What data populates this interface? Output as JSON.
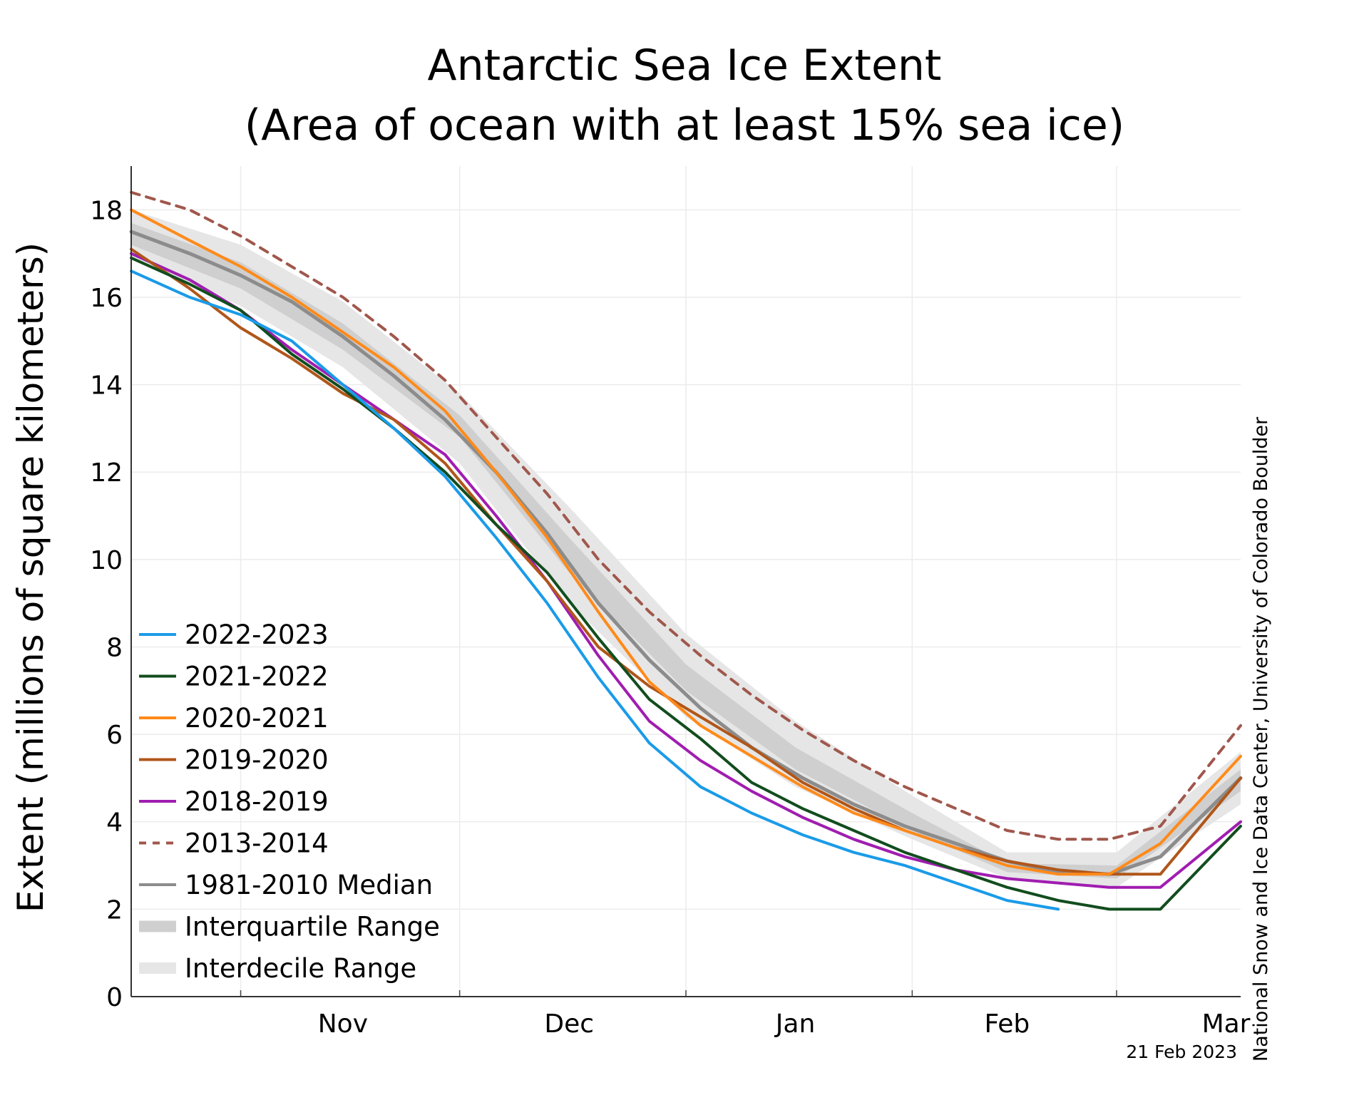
{
  "chart_data": {
    "type": "line",
    "title": "Antarctic Sea Ice Extent",
    "subtitle": "(Area of ocean with at least 15% sea ice)",
    "ylabel": "Extent (millions of square kilometers)",
    "xlabel": "",
    "xlim": [
      "2022-10-17",
      "2023-03-18"
    ],
    "ylim": [
      0,
      19
    ],
    "y_ticks": [
      0,
      2,
      4,
      6,
      8,
      10,
      12,
      14,
      16,
      18
    ],
    "x_tick_labels": [
      {
        "label": "Nov",
        "date": "2022-11-15"
      },
      {
        "label": "Dec",
        "date": "2022-12-16"
      },
      {
        "label": "Jan",
        "date": "2023-01-16"
      },
      {
        "label": "Feb",
        "date": "2023-02-14"
      },
      {
        "label": "Mar",
        "date": "2023-03-16"
      }
    ],
    "month_boundaries": [
      "2022-11-01",
      "2022-12-01",
      "2023-01-01",
      "2023-02-01",
      "2023-03-01"
    ],
    "grid": true,
    "legend_position": "bottom-left",
    "series": [
      {
        "name": "2022-2023",
        "color": "#1a9be8",
        "dash": false,
        "x": [
          "2022-10-17",
          "2022-10-25",
          "2022-11-01",
          "2022-11-08",
          "2022-11-15",
          "2022-11-22",
          "2022-11-29",
          "2022-12-06",
          "2022-12-13",
          "2022-12-20",
          "2022-12-27",
          "2023-01-03",
          "2023-01-10",
          "2023-01-17",
          "2023-01-24",
          "2023-01-31",
          "2023-02-07",
          "2023-02-14",
          "2023-02-21"
        ],
        "values": [
          16.6,
          16.0,
          15.6,
          15.0,
          14.0,
          13.0,
          11.9,
          10.5,
          9.0,
          7.3,
          5.8,
          4.8,
          4.2,
          3.7,
          3.3,
          3.0,
          2.6,
          2.2,
          2.0
        ]
      },
      {
        "name": "2021-2022",
        "color": "#124d1e",
        "dash": false,
        "x": [
          "2022-10-17",
          "2022-10-25",
          "2022-11-01",
          "2022-11-08",
          "2022-11-15",
          "2022-11-22",
          "2022-11-29",
          "2022-12-06",
          "2022-12-13",
          "2022-12-20",
          "2022-12-27",
          "2023-01-03",
          "2023-01-10",
          "2023-01-17",
          "2023-01-24",
          "2023-01-31",
          "2023-02-07",
          "2023-02-14",
          "2023-02-21",
          "2023-02-28",
          "2023-03-07",
          "2023-03-18"
        ],
        "values": [
          16.9,
          16.3,
          15.7,
          14.7,
          13.9,
          13.0,
          12.0,
          10.8,
          9.7,
          8.2,
          6.8,
          5.9,
          4.9,
          4.3,
          3.8,
          3.3,
          2.9,
          2.5,
          2.2,
          2.0,
          2.0,
          3.9
        ]
      },
      {
        "name": "2020-2021",
        "color": "#ff8a1a",
        "dash": false,
        "x": [
          "2022-10-17",
          "2022-10-25",
          "2022-11-01",
          "2022-11-08",
          "2022-11-15",
          "2022-11-22",
          "2022-11-29",
          "2022-12-06",
          "2022-12-13",
          "2022-12-20",
          "2022-12-27",
          "2023-01-03",
          "2023-01-10",
          "2023-01-17",
          "2023-01-24",
          "2023-01-31",
          "2023-02-07",
          "2023-02-14",
          "2023-02-21",
          "2023-02-28",
          "2023-03-07",
          "2023-03-18"
        ],
        "values": [
          18.0,
          17.3,
          16.7,
          16.0,
          15.2,
          14.4,
          13.4,
          12.0,
          10.5,
          8.8,
          7.2,
          6.2,
          5.5,
          4.8,
          4.2,
          3.8,
          3.4,
          3.0,
          2.8,
          2.8,
          3.5,
          5.5
        ]
      },
      {
        "name": "2019-2020",
        "color": "#b0561a",
        "dash": false,
        "x": [
          "2022-10-17",
          "2022-10-25",
          "2022-11-01",
          "2022-11-08",
          "2022-11-15",
          "2022-11-22",
          "2022-11-29",
          "2022-12-06",
          "2022-12-13",
          "2022-12-20",
          "2022-12-27",
          "2023-01-03",
          "2023-01-10",
          "2023-01-17",
          "2023-01-24",
          "2023-01-31",
          "2023-02-07",
          "2023-02-14",
          "2023-02-21",
          "2023-02-28",
          "2023-03-07",
          "2023-03-18"
        ],
        "values": [
          17.1,
          16.2,
          15.3,
          14.6,
          13.8,
          13.2,
          12.2,
          10.8,
          9.5,
          8.0,
          7.1,
          6.4,
          5.7,
          4.9,
          4.3,
          3.8,
          3.4,
          3.1,
          2.9,
          2.8,
          2.8,
          5.0
        ]
      },
      {
        "name": "2018-2019",
        "color": "#a01db0",
        "dash": false,
        "x": [
          "2022-10-17",
          "2022-10-25",
          "2022-11-01",
          "2022-11-08",
          "2022-11-15",
          "2022-11-22",
          "2022-11-29",
          "2022-12-06",
          "2022-12-13",
          "2022-12-20",
          "2022-12-27",
          "2023-01-03",
          "2023-01-10",
          "2023-01-17",
          "2023-01-24",
          "2023-01-31",
          "2023-02-07",
          "2023-02-14",
          "2023-02-21",
          "2023-02-28",
          "2023-03-07",
          "2023-03-18"
        ],
        "values": [
          17.0,
          16.4,
          15.7,
          14.8,
          14.0,
          13.2,
          12.4,
          11.0,
          9.5,
          7.8,
          6.3,
          5.4,
          4.7,
          4.1,
          3.6,
          3.2,
          2.9,
          2.7,
          2.6,
          2.5,
          2.5,
          4.0
        ]
      },
      {
        "name": "2013-2014",
        "color": "#a0574c",
        "dash": true,
        "x": [
          "2022-10-17",
          "2022-10-25",
          "2022-11-01",
          "2022-11-08",
          "2022-11-15",
          "2022-11-22",
          "2022-11-29",
          "2022-12-06",
          "2022-12-13",
          "2022-12-20",
          "2022-12-27",
          "2023-01-03",
          "2023-01-10",
          "2023-01-17",
          "2023-01-24",
          "2023-01-31",
          "2023-02-07",
          "2023-02-14",
          "2023-02-21",
          "2023-02-28",
          "2023-03-07",
          "2023-03-18"
        ],
        "values": [
          18.4,
          18.0,
          17.4,
          16.7,
          16.0,
          15.1,
          14.1,
          12.8,
          11.5,
          10.0,
          8.8,
          7.8,
          6.9,
          6.1,
          5.4,
          4.8,
          4.3,
          3.8,
          3.6,
          3.6,
          3.9,
          6.2
        ]
      },
      {
        "name": "1981-2010 Median",
        "color": "#8c8c8c",
        "dash": false,
        "x": [
          "2022-10-17",
          "2022-10-25",
          "2022-11-01",
          "2022-11-08",
          "2022-11-15",
          "2022-11-22",
          "2022-11-29",
          "2022-12-06",
          "2022-12-13",
          "2022-12-20",
          "2022-12-27",
          "2023-01-03",
          "2023-01-10",
          "2023-01-17",
          "2023-01-24",
          "2023-01-31",
          "2023-02-07",
          "2023-02-14",
          "2023-02-21",
          "2023-02-28",
          "2023-03-07",
          "2023-03-18"
        ],
        "values": [
          17.5,
          17.0,
          16.5,
          15.9,
          15.1,
          14.2,
          13.2,
          12.0,
          10.6,
          9.0,
          7.7,
          6.6,
          5.7,
          5.0,
          4.4,
          3.9,
          3.5,
          3.1,
          2.85,
          2.8,
          3.2,
          5.0
        ]
      }
    ],
    "ranges": [
      {
        "name": "Interdecile Range",
        "color": "#e6e6e6",
        "x": [
          "2022-10-17",
          "2022-11-01",
          "2022-11-15",
          "2022-12-01",
          "2022-12-16",
          "2023-01-01",
          "2023-01-16",
          "2023-02-01",
          "2023-02-14",
          "2023-03-01",
          "2023-03-18"
        ],
        "low": [
          16.9,
          15.8,
          14.4,
          12.2,
          9.0,
          6.4,
          4.8,
          3.6,
          2.7,
          2.5,
          4.4
        ],
        "high": [
          18.0,
          17.2,
          15.9,
          13.8,
          11.2,
          8.3,
          6.3,
          4.6,
          3.3,
          3.3,
          5.6
        ]
      },
      {
        "name": "Interquartile Range",
        "color": "#cfcfcf",
        "x": [
          "2022-10-17",
          "2022-11-01",
          "2022-11-15",
          "2022-12-01",
          "2022-12-16",
          "2023-01-01",
          "2023-01-16",
          "2023-02-01",
          "2023-02-14",
          "2023-03-01",
          "2023-03-18"
        ],
        "low": [
          17.2,
          16.2,
          14.8,
          12.8,
          9.7,
          7.0,
          5.2,
          3.8,
          2.85,
          2.7,
          4.7
        ],
        "high": [
          17.7,
          16.8,
          15.4,
          13.3,
          10.5,
          7.6,
          5.7,
          4.2,
          3.05,
          3.0,
          5.2
        ]
      }
    ],
    "legend": [
      {
        "label": "2022-2023",
        "kind": "line",
        "color": "#1a9be8",
        "dash": false
      },
      {
        "label": "2021-2022",
        "kind": "line",
        "color": "#124d1e",
        "dash": false
      },
      {
        "label": "2020-2021",
        "kind": "line",
        "color": "#ff8a1a",
        "dash": false
      },
      {
        "label": "2019-2020",
        "kind": "line",
        "color": "#b0561a",
        "dash": false
      },
      {
        "label": "2018-2019",
        "kind": "line",
        "color": "#a01db0",
        "dash": false
      },
      {
        "label": "2013-2014",
        "kind": "line",
        "color": "#a0574c",
        "dash": true
      },
      {
        "label": "1981-2010 Median",
        "kind": "line",
        "color": "#8c8c8c",
        "dash": false
      },
      {
        "label": "Interquartile Range",
        "kind": "band",
        "color": "#cfcfcf",
        "dash": false
      },
      {
        "label": "Interdecile Range",
        "kind": "band",
        "color": "#e6e6e6",
        "dash": false
      }
    ],
    "credit": "National Snow and Ice Data Center, University of Colorado Boulder",
    "date_stamp": "21 Feb 2023"
  }
}
